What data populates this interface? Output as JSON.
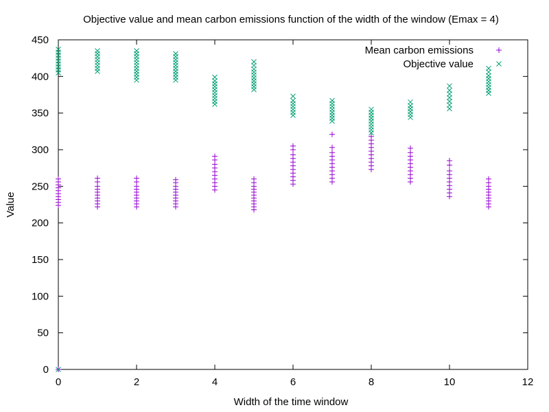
{
  "chart_data": {
    "type": "scatter",
    "title": "Objective value and mean carbon emissions function of the width of the window (Emax = 4)",
    "xlabel": "Width of the time window",
    "ylabel": "Value",
    "xlim": [
      0,
      12
    ],
    "ylim": [
      0,
      450
    ],
    "xticks": [
      0,
      2,
      4,
      6,
      8,
      10,
      12
    ],
    "yticks": [
      0,
      50,
      100,
      150,
      200,
      250,
      300,
      350,
      400,
      450
    ],
    "grid": false,
    "legend_position": "top-right",
    "series": [
      {
        "name": "Mean carbon emissions",
        "marker": "plus",
        "color": "#9400d3",
        "points": [
          [
            0,
            0
          ],
          [
            0,
            224
          ],
          [
            0,
            228
          ],
          [
            0,
            232
          ],
          [
            0,
            236
          ],
          [
            0,
            240
          ],
          [
            0,
            244
          ],
          [
            0,
            248
          ],
          [
            0,
            252
          ],
          [
            0,
            256
          ],
          [
            0,
            260
          ],
          [
            1,
            222
          ],
          [
            1,
            226
          ],
          [
            1,
            230
          ],
          [
            1,
            234
          ],
          [
            1,
            238
          ],
          [
            1,
            242
          ],
          [
            1,
            246
          ],
          [
            1,
            250
          ],
          [
            1,
            256
          ],
          [
            1,
            261
          ],
          [
            2,
            222
          ],
          [
            2,
            226
          ],
          [
            2,
            230
          ],
          [
            2,
            234
          ],
          [
            2,
            238
          ],
          [
            2,
            242
          ],
          [
            2,
            246
          ],
          [
            2,
            250
          ],
          [
            2,
            256
          ],
          [
            2,
            261
          ],
          [
            3,
            222
          ],
          [
            3,
            226
          ],
          [
            3,
            230
          ],
          [
            3,
            234
          ],
          [
            3,
            238
          ],
          [
            3,
            242
          ],
          [
            3,
            246
          ],
          [
            3,
            250
          ],
          [
            3,
            255
          ],
          [
            3,
            259
          ],
          [
            4,
            245
          ],
          [
            4,
            250
          ],
          [
            4,
            255
          ],
          [
            4,
            260
          ],
          [
            4,
            265
          ],
          [
            4,
            270
          ],
          [
            4,
            275
          ],
          [
            4,
            280
          ],
          [
            4,
            286
          ],
          [
            4,
            291
          ],
          [
            5,
            218
          ],
          [
            5,
            222
          ],
          [
            5,
            226
          ],
          [
            5,
            230
          ],
          [
            5,
            234
          ],
          [
            5,
            238
          ],
          [
            5,
            242
          ],
          [
            5,
            246
          ],
          [
            5,
            250
          ],
          [
            5,
            255
          ],
          [
            5,
            260
          ],
          [
            6,
            253
          ],
          [
            6,
            258
          ],
          [
            6,
            263
          ],
          [
            6,
            268
          ],
          [
            6,
            273
          ],
          [
            6,
            278
          ],
          [
            6,
            283
          ],
          [
            6,
            288
          ],
          [
            6,
            293
          ],
          [
            6,
            300
          ],
          [
            6,
            305
          ],
          [
            7,
            256
          ],
          [
            7,
            261
          ],
          [
            7,
            266
          ],
          [
            7,
            271
          ],
          [
            7,
            276
          ],
          [
            7,
            281
          ],
          [
            7,
            286
          ],
          [
            7,
            291
          ],
          [
            7,
            296
          ],
          [
            7,
            303
          ],
          [
            7,
            321
          ],
          [
            8,
            273
          ],
          [
            8,
            278
          ],
          [
            8,
            283
          ],
          [
            8,
            288
          ],
          [
            8,
            293
          ],
          [
            8,
            298
          ],
          [
            8,
            303
          ],
          [
            8,
            308
          ],
          [
            8,
            313
          ],
          [
            8,
            318
          ],
          [
            9,
            256
          ],
          [
            9,
            261
          ],
          [
            9,
            266
          ],
          [
            9,
            271
          ],
          [
            9,
            276
          ],
          [
            9,
            281
          ],
          [
            9,
            286
          ],
          [
            9,
            291
          ],
          [
            9,
            296
          ],
          [
            9,
            302
          ],
          [
            10,
            236
          ],
          [
            10,
            241
          ],
          [
            10,
            246
          ],
          [
            10,
            251
          ],
          [
            10,
            256
          ],
          [
            10,
            261
          ],
          [
            10,
            266
          ],
          [
            10,
            271
          ],
          [
            10,
            279
          ],
          [
            10,
            285
          ],
          [
            11,
            222
          ],
          [
            11,
            226
          ],
          [
            11,
            230
          ],
          [
            11,
            234
          ],
          [
            11,
            238
          ],
          [
            11,
            242
          ],
          [
            11,
            246
          ],
          [
            11,
            250
          ],
          [
            11,
            255
          ],
          [
            11,
            260
          ]
        ]
      },
      {
        "name": "Objective value",
        "marker": "cross",
        "color": "#009e73",
        "points": [
          [
            0,
            0
          ],
          [
            0,
            405
          ],
          [
            0,
            409
          ],
          [
            0,
            413
          ],
          [
            0,
            417
          ],
          [
            0,
            421
          ],
          [
            0,
            425
          ],
          [
            0,
            429
          ],
          [
            0,
            433
          ],
          [
            0,
            437
          ],
          [
            1,
            407
          ],
          [
            1,
            411
          ],
          [
            1,
            415
          ],
          [
            1,
            419
          ],
          [
            1,
            423
          ],
          [
            1,
            427
          ],
          [
            1,
            431
          ],
          [
            1,
            435
          ],
          [
            2,
            395
          ],
          [
            2,
            399
          ],
          [
            2,
            403
          ],
          [
            2,
            407
          ],
          [
            2,
            411
          ],
          [
            2,
            415
          ],
          [
            2,
            419
          ],
          [
            2,
            423
          ],
          [
            2,
            427
          ],
          [
            2,
            431
          ],
          [
            2,
            435
          ],
          [
            3,
            395
          ],
          [
            3,
            399
          ],
          [
            3,
            403
          ],
          [
            3,
            407
          ],
          [
            3,
            411
          ],
          [
            3,
            415
          ],
          [
            3,
            419
          ],
          [
            3,
            423
          ],
          [
            3,
            427
          ],
          [
            3,
            431
          ],
          [
            4,
            362
          ],
          [
            4,
            366
          ],
          [
            4,
            370
          ],
          [
            4,
            374
          ],
          [
            4,
            378
          ],
          [
            4,
            382
          ],
          [
            4,
            386
          ],
          [
            4,
            390
          ],
          [
            4,
            394
          ],
          [
            4,
            399
          ],
          [
            5,
            382
          ],
          [
            5,
            386
          ],
          [
            5,
            390
          ],
          [
            5,
            394
          ],
          [
            5,
            398
          ],
          [
            5,
            402
          ],
          [
            5,
            406
          ],
          [
            5,
            410
          ],
          [
            5,
            415
          ],
          [
            5,
            420
          ],
          [
            6,
            347
          ],
          [
            6,
            351
          ],
          [
            6,
            355
          ],
          [
            6,
            359
          ],
          [
            6,
            363
          ],
          [
            6,
            367
          ],
          [
            6,
            373
          ],
          [
            7,
            339
          ],
          [
            7,
            343
          ],
          [
            7,
            347
          ],
          [
            7,
            351
          ],
          [
            7,
            355
          ],
          [
            7,
            359
          ],
          [
            7,
            363
          ],
          [
            7,
            367
          ],
          [
            8,
            323
          ],
          [
            8,
            327
          ],
          [
            8,
            331
          ],
          [
            8,
            335
          ],
          [
            8,
            339
          ],
          [
            8,
            343
          ],
          [
            8,
            347
          ],
          [
            8,
            351
          ],
          [
            8,
            355
          ],
          [
            9,
            344
          ],
          [
            9,
            348
          ],
          [
            9,
            352
          ],
          [
            9,
            356
          ],
          [
            9,
            360
          ],
          [
            9,
            365
          ],
          [
            10,
            356
          ],
          [
            10,
            361
          ],
          [
            10,
            366
          ],
          [
            10,
            371
          ],
          [
            10,
            376
          ],
          [
            10,
            381
          ],
          [
            10,
            387
          ],
          [
            11,
            377
          ],
          [
            11,
            381
          ],
          [
            11,
            385
          ],
          [
            11,
            389
          ],
          [
            11,
            393
          ],
          [
            11,
            397
          ],
          [
            11,
            401
          ],
          [
            11,
            406
          ],
          [
            11,
            411
          ]
        ]
      }
    ]
  }
}
